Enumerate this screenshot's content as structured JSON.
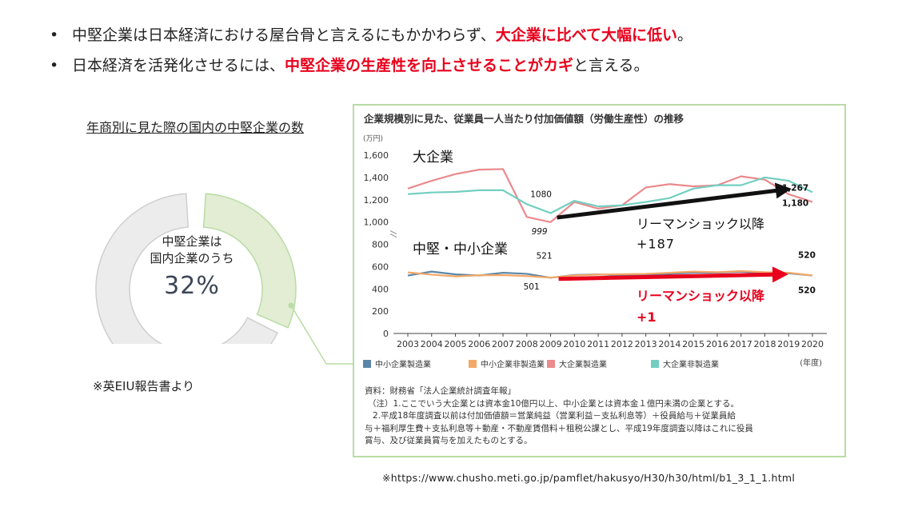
{
  "bullets": [
    {
      "text": "中堅企業は日本経済における屋台骨と言えるにもかかわらず、",
      "highlight": "大企業に比べて大幅に低い",
      "tail": "。"
    },
    {
      "text": "日本経済を活発化させるには、",
      "highlight": "中堅企業の生産性を向上させることがカギ",
      "tail": "と言える。"
    }
  ],
  "donut": {
    "title": "年商別に見た際の国内の中堅企業の数",
    "center_line1": "中堅企業は",
    "center_line2": "国内企業のうち",
    "percent_label": "32%",
    "fraction": 0.32,
    "highlight_color": "#e2edd3",
    "rest_color": "#ececec",
    "source": "※英EIU報告書より"
  },
  "chart_data": {
    "type": "line",
    "title": "企業規模別に見た、従業員一人当たり付加価値額（労働生産性）の推移",
    "unit_label": "(万円)",
    "x_unit": "(年度)",
    "x": [
      2003,
      2004,
      2005,
      2006,
      2007,
      2008,
      2009,
      2010,
      2011,
      2012,
      2013,
      2014,
      2015,
      2016,
      2017,
      2018,
      2019,
      2020
    ],
    "ylim": [
      0,
      1600
    ],
    "yticks_upper": [
      "1,600",
      "1,400",
      "1,200",
      "1,000"
    ],
    "yticks_lower": [
      "800",
      "600",
      "400",
      "200",
      "0"
    ],
    "series": [
      {
        "name": "中小企業製造業",
        "color": "#5b86a8",
        "values": [
          520,
          555,
          530,
          520,
          545,
          535,
          500,
          525,
          530,
          520,
          525,
          535,
          545,
          545,
          555,
          540,
          540,
          520
        ]
      },
      {
        "name": "中小企業非製造業",
        "color": "#f3a867",
        "values": [
          548,
          528,
          512,
          522,
          524,
          515,
          501,
          521,
          528,
          532,
          535,
          545,
          555,
          550,
          560,
          550,
          545,
          520
        ]
      },
      {
        "name": "大企業製造業",
        "color": "#ea8a8d",
        "values": [
          1300,
          1370,
          1430,
          1470,
          1475,
          1045,
          999,
          1180,
          1120,
          1150,
          1310,
          1340,
          1320,
          1330,
          1410,
          1380,
          1250,
          1180
        ]
      },
      {
        "name": "大企業非製造業",
        "color": "#72cfc0",
        "values": [
          1250,
          1265,
          1270,
          1285,
          1285,
          1160,
          1080,
          1190,
          1140,
          1150,
          1180,
          1215,
          1300,
          1330,
          1330,
          1400,
          1370,
          1267
        ]
      }
    ],
    "group_labels": {
      "large": "大企業",
      "small": "中堅・中小企業"
    },
    "data_labels": {
      "large_start": "1080",
      "large_low": "999",
      "large_end_a": "1,267",
      "large_end_b": "1,180",
      "small_start_a": "521",
      "small_start_b": "501",
      "small_end_a": "520",
      "small_end_b": "520"
    },
    "annotations": [
      {
        "label": "リーマンショック以降",
        "value": "+187",
        "color": "#111111"
      },
      {
        "label": "リーマンショック以降",
        "value": "+1",
        "color": "#e8001c"
      }
    ]
  },
  "notes": [
    "資料：財務省「法人企業統計調査年報」",
    "（注）1.ここでいう大企業とは資本金10億円以上、中小企業とは資本金１億円未満の企業とする。",
    "2.平成18年度調査以前は付加価値額＝営業純益（営業利益－支払利息等）＋役員給与＋従業員給",
    "与＋福利厚生費＋支払利息等＋動産・不動産賃借料＋租税公課とし、平成19年度調査以降はこれに役員",
    "賞与、及び従業員賞与を加えたものとする。"
  ],
  "url": "※https://www.chusho.meti.go.jp/pamflet/hakusyo/H30/h30/html/b1_3_1_1.html"
}
